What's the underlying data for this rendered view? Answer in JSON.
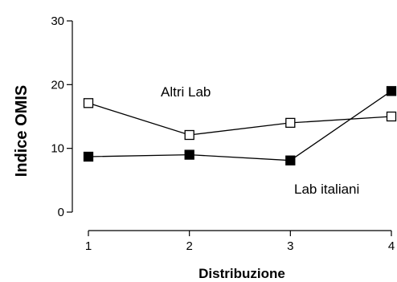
{
  "chart_data": {
    "type": "line",
    "x": [
      1,
      2,
      3,
      4
    ],
    "xlabel": "Distribuzione",
    "ylabel": "Indice OMIS",
    "xlim": [
      1,
      4
    ],
    "ylim": [
      0,
      30
    ],
    "x_ticks": [
      "1",
      "2",
      "3",
      "4"
    ],
    "y_ticks": [
      "0",
      "10",
      "20",
      "30"
    ],
    "grid": false,
    "legend": "none (series labeled directly on plot)",
    "series": [
      {
        "name": "Altri Lab",
        "marker": "open-square",
        "color": "#000000",
        "values": [
          17.1,
          12.1,
          14.0,
          15.0
        ]
      },
      {
        "name": "Lab italiani",
        "marker": "filled-square",
        "color": "#000000",
        "values": [
          8.7,
          9.0,
          8.1,
          19.0
        ]
      }
    ]
  }
}
